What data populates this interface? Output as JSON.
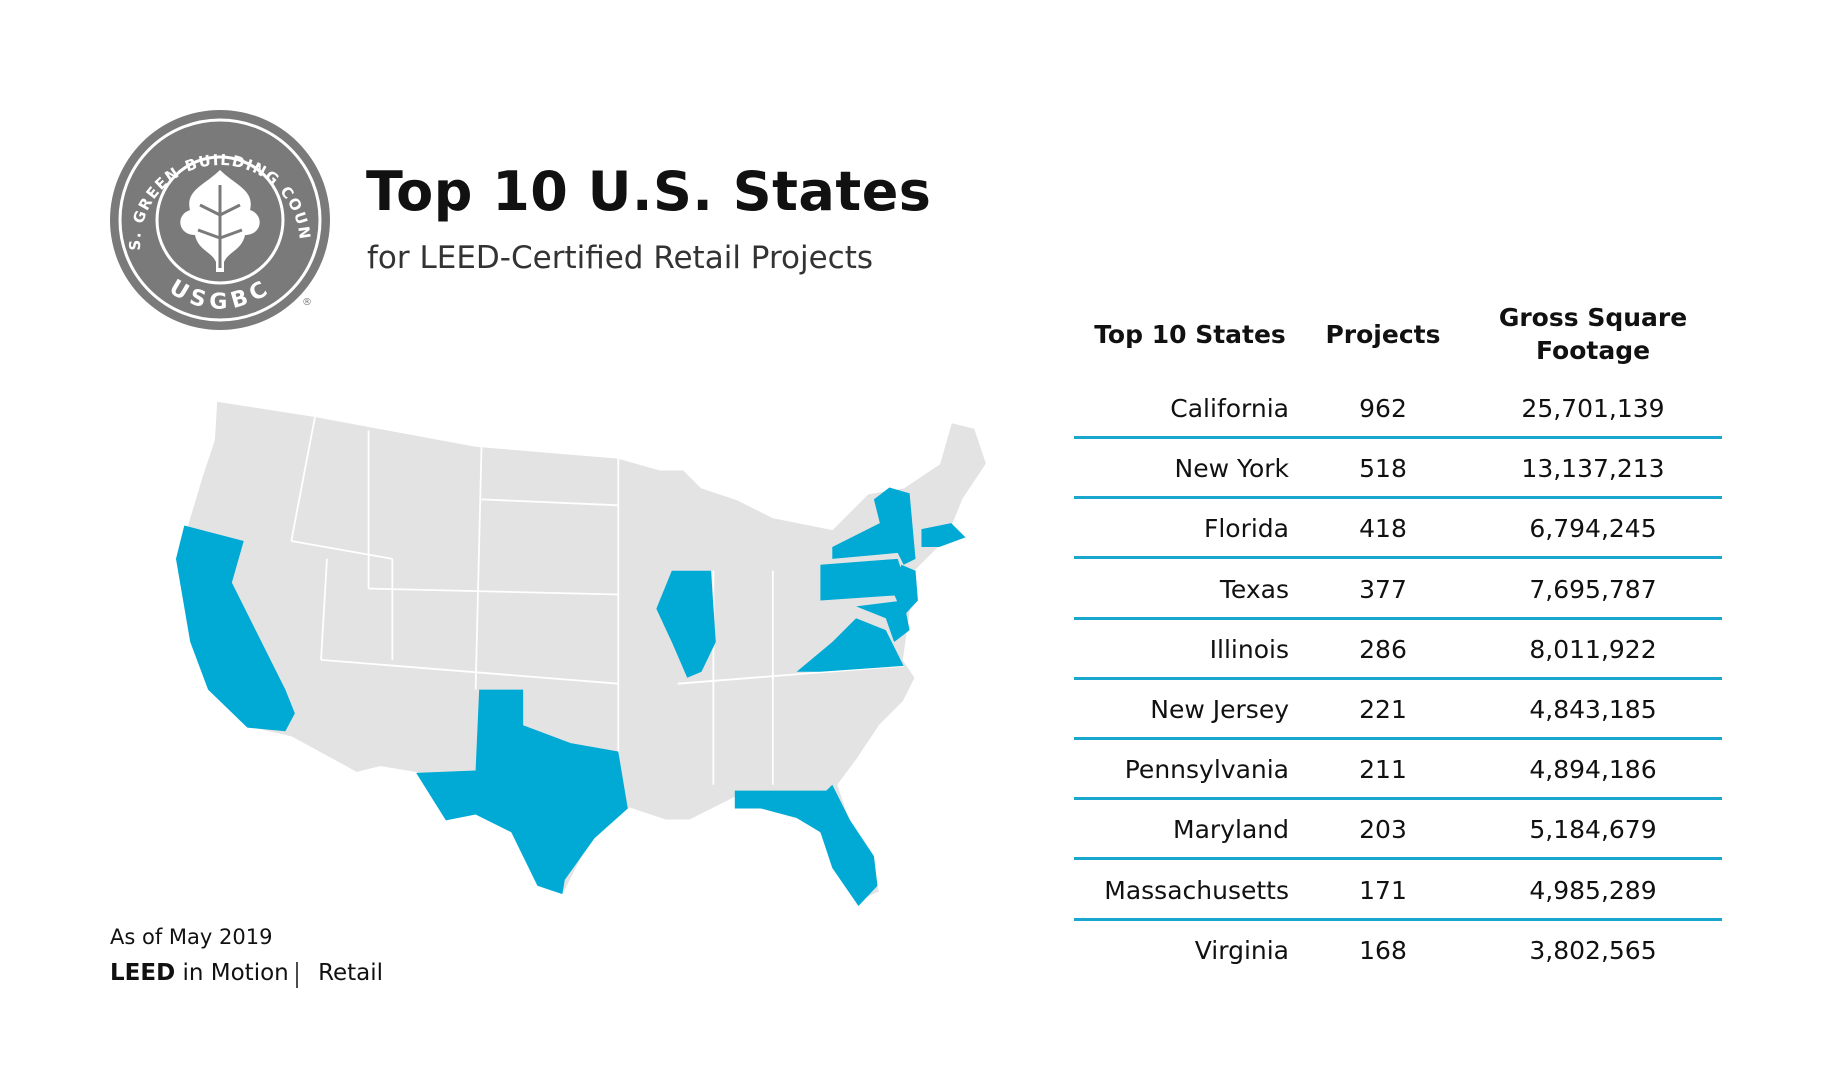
{
  "header": {
    "title": "Top 10 U.S. States",
    "subtitle": "for LEED-Certified Retail Projects"
  },
  "logo": {
    "ring_text": "U.S. GREEN BUILDING COUNCIL",
    "name": "USGBC",
    "mark": "®"
  },
  "table": {
    "columns": [
      "Top 10 States",
      "Projects",
      "Gross Square Footage"
    ],
    "rows": [
      [
        "California",
        "962",
        "25,701,139"
      ],
      [
        "New York",
        "518",
        "13,137,213"
      ],
      [
        "Florida",
        "418",
        "6,794,245"
      ],
      [
        "Texas",
        "377",
        "7,695,787"
      ],
      [
        "Illinois",
        "286",
        "8,011,922"
      ],
      [
        "New Jersey",
        "221",
        "4,843,185"
      ],
      [
        "Pennsylvania",
        "211",
        "4,894,186"
      ],
      [
        "Maryland",
        "203",
        "5,184,679"
      ],
      [
        "Massachusetts",
        "171",
        "4,985,289"
      ],
      [
        "Virginia",
        "168",
        "3,802,565"
      ]
    ]
  },
  "footer": {
    "date": "As of May 2019",
    "brand": "LEED",
    "series": "in Motion",
    "topic": "Retail"
  }
}
